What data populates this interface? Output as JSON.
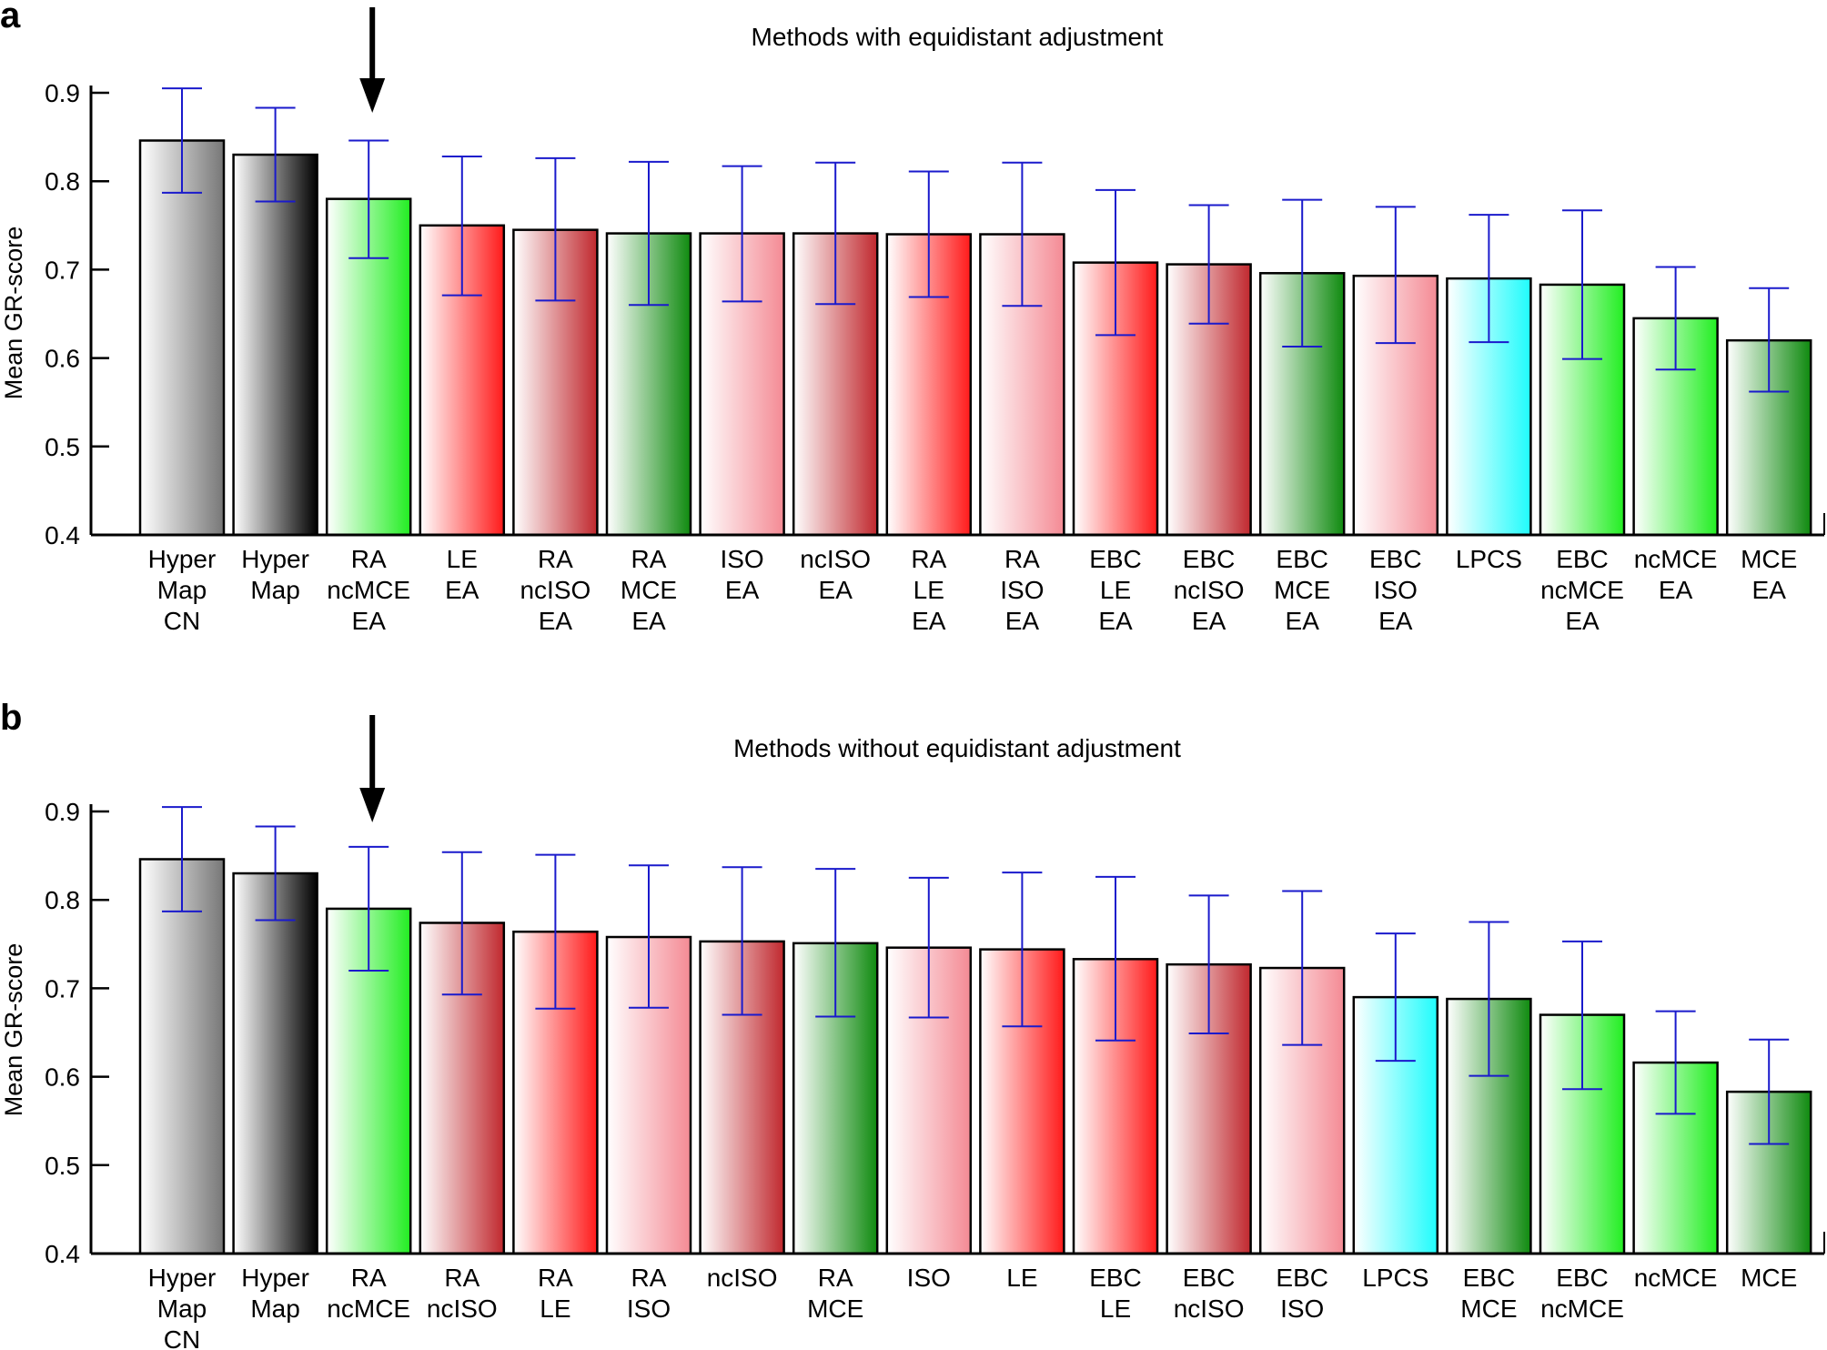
{
  "chart_data": [
    {
      "type": "bar",
      "panel": "a",
      "title": "Methods with equidistant adjustment",
      "xlabel": "",
      "ylabel": "Mean GR-score",
      "ylim": [
        0.4,
        0.9
      ],
      "yticks": [
        "0.4",
        "0.5",
        "0.6",
        "0.7",
        "0.8",
        "0.9"
      ],
      "highlight_index": 2,
      "categories": [
        [
          "Hyper",
          "Map",
          "CN"
        ],
        [
          "Hyper",
          "Map"
        ],
        [
          "RA",
          "ncMCE",
          "EA"
        ],
        [
          "LE",
          "EA"
        ],
        [
          "RA",
          "ncISO",
          "EA"
        ],
        [
          "RA",
          "MCE",
          "EA"
        ],
        [
          "ISO",
          "EA"
        ],
        [
          "ncISO",
          "EA"
        ],
        [
          "RA",
          "LE",
          "EA"
        ],
        [
          "RA",
          "ISO",
          "EA"
        ],
        [
          "EBC",
          "LE",
          "EA"
        ],
        [
          "EBC",
          "ncISO",
          "EA"
        ],
        [
          "EBC",
          "MCE",
          "EA"
        ],
        [
          "EBC",
          "ISO",
          "EA"
        ],
        [
          "LPCS"
        ],
        [
          "EBC",
          "ncMCE",
          "EA"
        ],
        [
          "ncMCE",
          "EA"
        ],
        [
          "MCE",
          "EA"
        ]
      ],
      "values": [
        0.846,
        0.83,
        0.78,
        0.75,
        0.745,
        0.741,
        0.741,
        0.741,
        0.74,
        0.74,
        0.708,
        0.706,
        0.696,
        0.693,
        0.69,
        0.683,
        0.645,
        0.62
      ],
      "err_low": [
        0.787,
        0.777,
        0.713,
        0.671,
        0.665,
        0.66,
        0.664,
        0.661,
        0.669,
        0.659,
        0.626,
        0.639,
        0.613,
        0.617,
        0.618,
        0.599,
        0.587,
        0.562
      ],
      "err_high": [
        0.905,
        0.883,
        0.846,
        0.828,
        0.826,
        0.822,
        0.817,
        0.821,
        0.811,
        0.821,
        0.79,
        0.773,
        0.779,
        0.771,
        0.762,
        0.767,
        0.703,
        0.679
      ],
      "bar_colors": [
        "#777777",
        "#000000",
        "#22ee22",
        "#ff1a1a",
        "#c0282e",
        "#0f8a0f",
        "#f48a94",
        "#c0282e",
        "#ff1a1a",
        "#f48a94",
        "#ff1a1a",
        "#c0282e",
        "#0f8a0f",
        "#f48a94",
        "#1ffcfc",
        "#22ee22",
        "#22ee22",
        "#0f8a0f"
      ],
      "gradient": [
        true,
        true,
        true,
        true,
        true,
        true,
        true,
        true,
        true,
        true,
        true,
        true,
        true,
        true,
        true,
        true,
        true,
        true
      ]
    },
    {
      "type": "bar",
      "panel": "b",
      "title": "Methods without equidistant adjustment",
      "xlabel": "",
      "ylabel": "Mean GR-score",
      "ylim": [
        0.4,
        0.9
      ],
      "yticks": [
        "0.4",
        "0.5",
        "0.6",
        "0.7",
        "0.8",
        "0.9"
      ],
      "highlight_index": 2,
      "categories": [
        [
          "Hyper",
          "Map",
          "CN"
        ],
        [
          "Hyper",
          "Map"
        ],
        [
          "RA",
          "ncMCE"
        ],
        [
          "RA",
          "ncISO"
        ],
        [
          "RA",
          "LE"
        ],
        [
          "RA",
          "ISO"
        ],
        [
          "ncISO"
        ],
        [
          "RA",
          "MCE"
        ],
        [
          "ISO"
        ],
        [
          "LE"
        ],
        [
          "EBC",
          "LE"
        ],
        [
          "EBC",
          "ncISO"
        ],
        [
          "EBC",
          "ISO"
        ],
        [
          "LPCS"
        ],
        [
          "EBC",
          "MCE"
        ],
        [
          "EBC",
          "ncMCE"
        ],
        [
          "ncMCE"
        ],
        [
          "MCE"
        ]
      ],
      "values": [
        0.846,
        0.83,
        0.79,
        0.774,
        0.764,
        0.758,
        0.753,
        0.751,
        0.746,
        0.744,
        0.733,
        0.727,
        0.723,
        0.69,
        0.688,
        0.67,
        0.616,
        0.583
      ],
      "err_low": [
        0.787,
        0.777,
        0.72,
        0.693,
        0.677,
        0.678,
        0.67,
        0.668,
        0.667,
        0.657,
        0.641,
        0.649,
        0.636,
        0.618,
        0.601,
        0.586,
        0.558,
        0.524
      ],
      "err_high": [
        0.905,
        0.883,
        0.86,
        0.854,
        0.851,
        0.839,
        0.837,
        0.835,
        0.825,
        0.831,
        0.826,
        0.805,
        0.81,
        0.762,
        0.775,
        0.753,
        0.674,
        0.642
      ],
      "bar_colors": [
        "#777777",
        "#000000",
        "#22ee22",
        "#c0282e",
        "#ff1a1a",
        "#f48a94",
        "#c0282e",
        "#0f8a0f",
        "#f48a94",
        "#ff1a1a",
        "#ff1a1a",
        "#c0282e",
        "#f48a94",
        "#1ffcfc",
        "#0f8a0f",
        "#22ee22",
        "#22ee22",
        "#0f8a0f"
      ],
      "gradient": [
        true,
        true,
        true,
        true,
        true,
        true,
        true,
        true,
        true,
        true,
        true,
        true,
        true,
        true,
        true,
        true,
        true,
        true
      ]
    }
  ],
  "error_bar_color": "#1a1acc",
  "bar_outline_color": "#000000"
}
